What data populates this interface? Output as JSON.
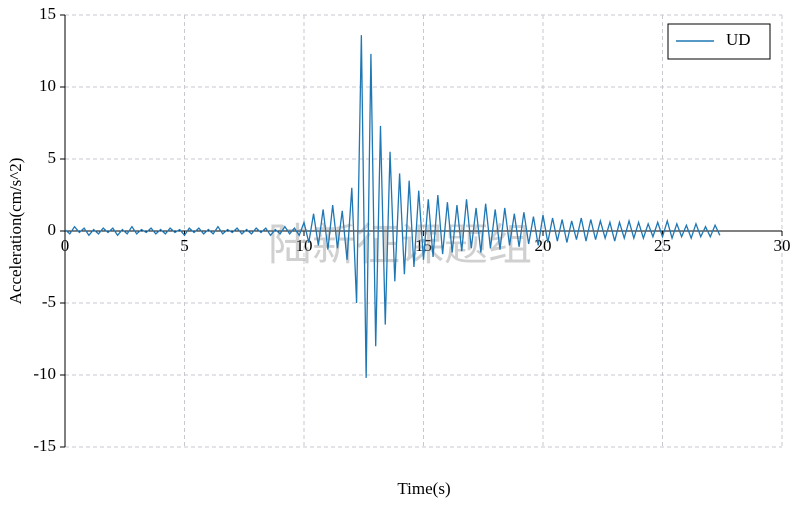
{
  "chart_data": {
    "type": "line",
    "xlabel": "Time(s)",
    "ylabel": "Acceleration(cm/s^2)",
    "watermark": "陆新征课题组",
    "xlim": [
      0,
      30
    ],
    "xticks": [
      0,
      5,
      10,
      15,
      20,
      25,
      30
    ],
    "ylim": [
      -15,
      15
    ],
    "yticks": [
      -15,
      -10,
      -5,
      0,
      5,
      10,
      15
    ],
    "grid": true,
    "legend": "upper right",
    "x": [
      0,
      0.2,
      0.4,
      0.6,
      0.8,
      1,
      1.2,
      1.4,
      1.6,
      1.8,
      2,
      2.2,
      2.4,
      2.6,
      2.8,
      3,
      3.2,
      3.4,
      3.6,
      3.8,
      4,
      4.2,
      4.4,
      4.6,
      4.8,
      5,
      5.2,
      5.4,
      5.6,
      5.8,
      6,
      6.2,
      6.4,
      6.6,
      6.8,
      7,
      7.2,
      7.4,
      7.6,
      7.8,
      8,
      8.2,
      8.4,
      8.6,
      8.8,
      9,
      9.2,
      9.4,
      9.6,
      9.8,
      10,
      10.2,
      10.4,
      10.6,
      10.8,
      11,
      11.2,
      11.4,
      11.6,
      11.8,
      12,
      12.2,
      12.4,
      12.6,
      12.8,
      13,
      13.2,
      13.4,
      13.6,
      13.8,
      14,
      14.2,
      14.4,
      14.6,
      14.8,
      15,
      15.2,
      15.4,
      15.6,
      15.8,
      16,
      16.2,
      16.4,
      16.6,
      16.8,
      17,
      17.2,
      17.4,
      17.6,
      17.8,
      18,
      18.2,
      18.4,
      18.6,
      18.8,
      19,
      19.2,
      19.4,
      19.6,
      19.8,
      20,
      20.2,
      20.4,
      20.6,
      20.8,
      21,
      21.2,
      21.4,
      21.6,
      21.8,
      22,
      22.2,
      22.4,
      22.6,
      22.8,
      23,
      23.2,
      23.4,
      23.6,
      23.8,
      24,
      24.2,
      24.4,
      24.6,
      24.8,
      25,
      25.2,
      25.4,
      25.6,
      25.8,
      26,
      26.2,
      26.4,
      26.6,
      26.8,
      27,
      27.2,
      27.4
    ],
    "series": [
      {
        "name": "UD",
        "color": "#1f77b4",
        "values": [
          0.1,
          -0.2,
          0.3,
          -0.1,
          0.2,
          -0.3,
          0.1,
          -0.2,
          0.2,
          -0.1,
          0.2,
          -0.3,
          0.1,
          -0.2,
          0.3,
          -0.2,
          0.1,
          -0.1,
          0.2,
          -0.2,
          0.1,
          -0.2,
          0.2,
          -0.1,
          0.1,
          -0.3,
          0.2,
          -0.1,
          0.2,
          -0.2,
          0.1,
          -0.2,
          0.3,
          -0.2,
          0.1,
          -0.1,
          0.2,
          -0.2,
          0.1,
          -0.2,
          0.2,
          -0.1,
          0.2,
          -0.3,
          0.1,
          -0.2,
          0.3,
          -0.2,
          0.2,
          -0.3,
          0.6,
          -0.8,
          1.2,
          -1,
          1.5,
          -1.3,
          1.8,
          -1.2,
          1.4,
          -2,
          3,
          -5,
          13.6,
          -10.2,
          12.3,
          -8,
          7.3,
          -6.5,
          5.5,
          -3.5,
          4,
          -3,
          3.5,
          -2.5,
          2.8,
          -2,
          2.2,
          -1.8,
          2.5,
          -1.6,
          2,
          -1.5,
          1.8,
          -1.4,
          2.2,
          -1.2,
          1.6,
          -1.5,
          1.9,
          -1.2,
          1.5,
          -1.3,
          1.6,
          -1,
          1.2,
          -1.1,
          1.3,
          -0.9,
          1,
          -1,
          1.1,
          -0.8,
          0.9,
          -0.7,
          0.8,
          -0.8,
          0.7,
          -0.6,
          0.9,
          -0.7,
          0.8,
          -0.6,
          0.7,
          -0.5,
          0.6,
          -0.7,
          0.6,
          -0.5,
          0.7,
          -0.5,
          0.6,
          -0.5,
          0.5,
          -0.4,
          0.6,
          -0.4,
          0.7,
          -0.5,
          0.5,
          -0.4,
          0.4,
          -0.5,
          0.5,
          -0.4,
          0.3,
          -0.4,
          0.4,
          -0.3
        ]
      }
    ]
  }
}
